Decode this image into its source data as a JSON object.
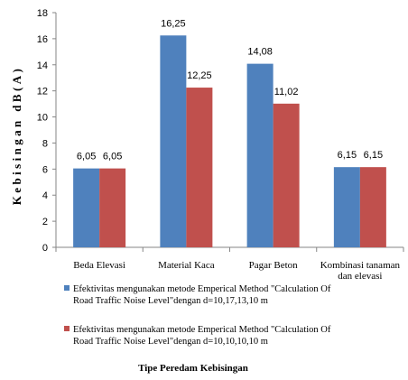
{
  "chart_data": {
    "type": "bar",
    "categories": [
      [
        "Beda Elevasi"
      ],
      [
        "Material Kaca"
      ],
      [
        "Pagar Beton"
      ],
      [
        "Kombinasi tanaman",
        "dan elevasi"
      ]
    ],
    "series": [
      {
        "name": "Efektivitas mengunakan metode Emperical Method \"Calculation Of Road Traffic Noise Level\"dengan d=10,17,13,10 m",
        "name_lines": [
          "Efektivitas mengunakan metode Emperical Method \"Calculation Of",
          "Road Traffic Noise Level\"dengan d=10,17,13,10 m"
        ],
        "values": [
          6.05,
          16.25,
          14.08,
          6.15
        ],
        "labels": [
          "6,05",
          "16,25",
          "14,08",
          "6,15"
        ],
        "color": "#4f81bd"
      },
      {
        "name": "Efektivitas mengunakan metode Emperical Method \"Calculation Of Road Traffic Noise Level\"dengan d=10,10,10,10 m",
        "name_lines": [
          "Efektivitas mengunakan metode Emperical Method \"Calculation Of",
          "Road Traffic Noise Level\"dengan d=10,10,10,10 m"
        ],
        "values": [
          6.05,
          12.25,
          11.02,
          6.15
        ],
        "labels": [
          "6,05",
          "12,25",
          "11,02",
          "6,15"
        ],
        "color": "#c0504d"
      }
    ],
    "ylabel": "Kebisingan dB(A)",
    "xlabel": "Tipe Peredam Kebisingan",
    "ylim": [
      0,
      18
    ],
    "yticks": [
      0,
      2,
      4,
      6,
      8,
      10,
      12,
      14,
      16,
      18
    ],
    "grid": false,
    "legend_position": "bottom"
  }
}
